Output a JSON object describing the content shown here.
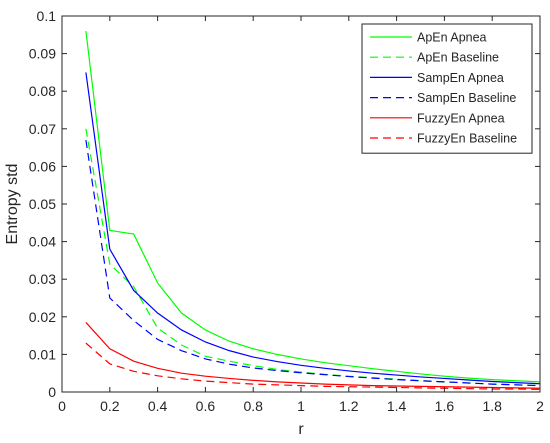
{
  "chart_data": {
    "type": "line",
    "xlabel": "r",
    "ylabel": "Entropy std",
    "xlim": [
      0,
      2
    ],
    "ylim": [
      0,
      0.1
    ],
    "xticks": [
      "0",
      "0.2",
      "0.4",
      "0.6",
      "0.8",
      "1",
      "1.2",
      "1.4",
      "1.6",
      "1.8",
      "2"
    ],
    "yticks": [
      "0",
      "0.01",
      "0.02",
      "0.03",
      "0.04",
      "0.05",
      "0.06",
      "0.07",
      "0.08",
      "0.09",
      "0.1"
    ],
    "grid": false,
    "legend_position": "top-right",
    "x": [
      0.1,
      0.2,
      0.3,
      0.4,
      0.5,
      0.6,
      0.7,
      0.8,
      0.9,
      1.0,
      1.1,
      1.2,
      1.3,
      1.4,
      1.5,
      1.6,
      1.7,
      1.8,
      1.9,
      2.0
    ],
    "series": [
      {
        "name": "ApEn Apnea",
        "color": "#00ff00",
        "dash": "solid",
        "values": [
          0.096,
          0.043,
          0.042,
          0.029,
          0.021,
          0.0165,
          0.0135,
          0.0115,
          0.01,
          0.0088,
          0.0078,
          0.007,
          0.0062,
          0.0055,
          0.0048,
          0.0042,
          0.0037,
          0.0033,
          0.003,
          0.0027
        ]
      },
      {
        "name": "ApEn Baseline",
        "color": "#00ff00",
        "dash": "dashed",
        "values": [
          0.07,
          0.034,
          0.028,
          0.017,
          0.0125,
          0.0095,
          0.0082,
          0.007,
          0.006,
          0.0053,
          0.0047,
          0.0042,
          0.0038,
          0.0034,
          0.003,
          0.0027,
          0.0024,
          0.0021,
          0.0019,
          0.0017
        ]
      },
      {
        "name": "SampEn Apnea",
        "color": "#0000ff",
        "dash": "solid",
        "values": [
          0.085,
          0.038,
          0.027,
          0.021,
          0.0165,
          0.0133,
          0.011,
          0.0093,
          0.0081,
          0.0071,
          0.0063,
          0.0056,
          0.005,
          0.0045,
          0.004,
          0.0036,
          0.0032,
          0.0028,
          0.0025,
          0.0022
        ]
      },
      {
        "name": "SampEn Baseline",
        "color": "#0000ff",
        "dash": "dashed",
        "values": [
          0.067,
          0.025,
          0.019,
          0.014,
          0.011,
          0.0088,
          0.0074,
          0.0064,
          0.0057,
          0.0051,
          0.0046,
          0.0041,
          0.0037,
          0.0033,
          0.003,
          0.0027,
          0.0024,
          0.0021,
          0.0019,
          0.0017
        ]
      },
      {
        "name": "FuzzyEn Apnea",
        "color": "#ff0000",
        "dash": "solid",
        "values": [
          0.0185,
          0.0115,
          0.0082,
          0.0063,
          0.005,
          0.0042,
          0.0036,
          0.0031,
          0.0027,
          0.0024,
          0.0021,
          0.0019,
          0.0017,
          0.0016,
          0.0015,
          0.0014,
          0.0013,
          0.0012,
          0.0011,
          0.001
        ]
      },
      {
        "name": "FuzzyEn Baseline",
        "color": "#ff0000",
        "dash": "dashed",
        "values": [
          0.013,
          0.0075,
          0.0055,
          0.0043,
          0.0035,
          0.0029,
          0.0025,
          0.0021,
          0.0019,
          0.0017,
          0.0015,
          0.0014,
          0.0013,
          0.0012,
          0.0011,
          0.001,
          0.0009,
          0.0008,
          0.0008,
          0.0007
        ]
      }
    ]
  }
}
